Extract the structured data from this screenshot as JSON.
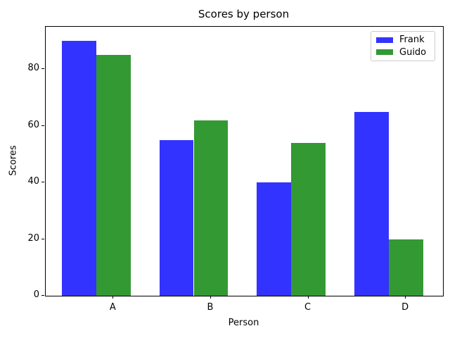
{
  "chart_data": {
    "type": "bar",
    "title": "Scores by person",
    "xlabel": "Person",
    "ylabel": "Scores",
    "categories": [
      "A",
      "B",
      "C",
      "D"
    ],
    "series": [
      {
        "name": "Frank",
        "color": "#3333ff",
        "values": [
          90,
          55,
          40,
          65
        ]
      },
      {
        "name": "Guido",
        "color": "#339933",
        "values": [
          85,
          62,
          54,
          20
        ]
      }
    ],
    "ylim": [
      0,
      95
    ],
    "yticks": [
      0,
      20,
      40,
      60,
      80
    ],
    "grid": false,
    "legend_position": "upper right",
    "background_color": "#ffffff",
    "axis_color": "#000000"
  }
}
